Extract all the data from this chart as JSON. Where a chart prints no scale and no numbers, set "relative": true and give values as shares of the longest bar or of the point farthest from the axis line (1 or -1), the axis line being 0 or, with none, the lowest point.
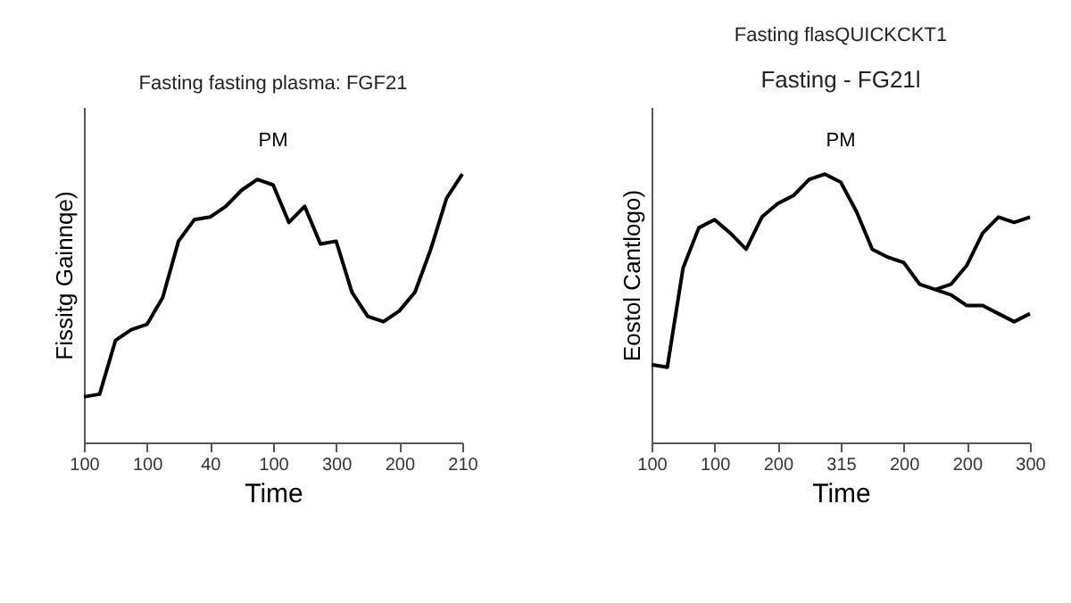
{
  "chart_data": [
    {
      "type": "line",
      "title": "Fasting fasting plasma: FGF21",
      "xlabel": "Time",
      "ylabel": "Fissitg Gainnqe)",
      "relative": true,
      "marker": "none",
      "line_style": "solid",
      "categories": [
        "100",
        null,
        null,
        null,
        "100",
        null,
        null,
        null,
        "40",
        null,
        null,
        null,
        "100",
        null,
        null,
        null,
        "300",
        null,
        null,
        null,
        "200",
        null,
        null,
        null,
        "210"
      ],
      "annotations": [
        "PM"
      ],
      "series": [
        {
          "color": "#000000",
          "values": [
            0.17,
            0.18,
            0.38,
            0.42,
            0.44,
            0.54,
            0.75,
            0.83,
            0.84,
            0.88,
            0.94,
            0.98,
            0.96,
            0.82,
            0.88,
            0.74,
            0.75,
            0.56,
            0.47,
            0.45,
            0.49,
            0.56,
            0.72,
            0.91,
            1
          ]
        }
      ]
    },
    {
      "type": "line",
      "title": "Fasting flasQUICKCKT1",
      "subtitle": "Fasting - FG21l",
      "xlabel": "Time",
      "ylabel": "Eostol Cantlogo)",
      "relative": true,
      "marker": "none",
      "line_style": "solid",
      "categories": [
        "100",
        null,
        null,
        null,
        "100",
        null,
        null,
        null,
        "200",
        null,
        null,
        null,
        "315",
        null,
        null,
        null,
        "200",
        null,
        null,
        null,
        "200",
        null,
        null,
        null,
        "300"
      ],
      "annotations": [
        "PM"
      ],
      "series": [
        {
          "color": "#000000",
          "values": [
            0.29,
            0.28,
            0.65,
            0.8,
            0.83,
            0.78,
            0.72,
            0.84,
            0.89,
            0.92,
            0.98,
            1,
            0.97,
            0.86,
            0.72,
            0.69,
            0.67,
            0.59,
            0.57,
            0.55,
            0.51,
            0.51,
            0.48,
            0.45,
            0.48
          ]
        },
        {
          "color": "#000000",
          "values": [
            null,
            null,
            null,
            null,
            null,
            null,
            null,
            null,
            null,
            null,
            null,
            null,
            null,
            null,
            null,
            null,
            null,
            null,
            0.57,
            0.59,
            0.66,
            0.78,
            0.84,
            0.82,
            0.84
          ]
        }
      ]
    }
  ]
}
